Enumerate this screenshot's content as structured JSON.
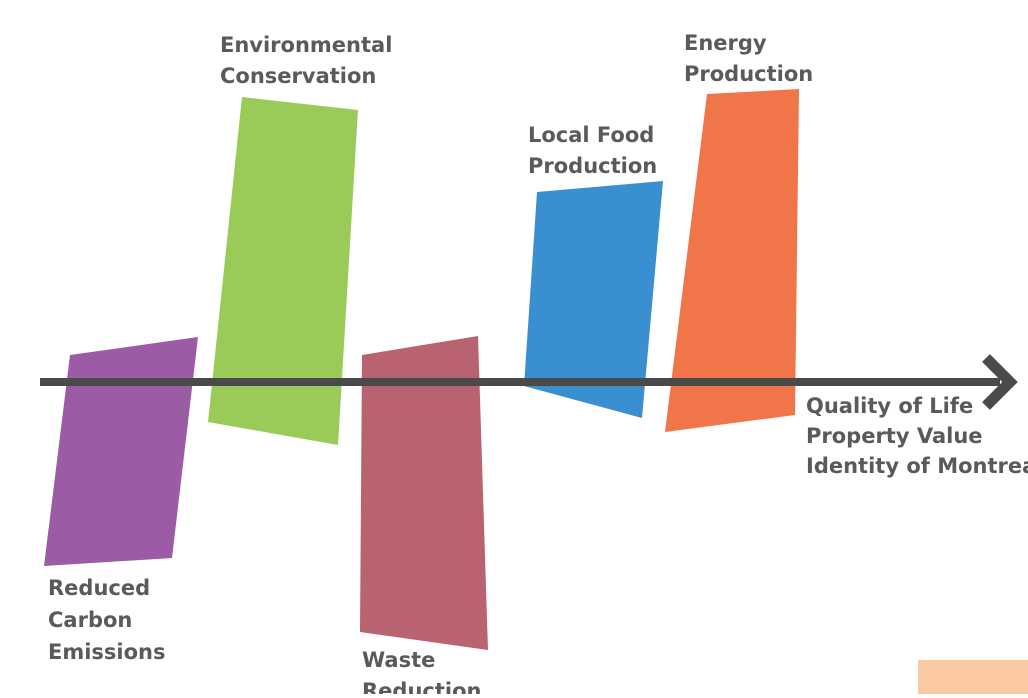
{
  "diagram": {
    "axis": {
      "outcomes": [
        "Quality of Life",
        "Property Value",
        "Identity of Montreal"
      ],
      "color": "#4a4a4a"
    },
    "blocks": [
      {
        "id": "carbon",
        "label_lines": [
          "Reduced",
          "Carbon",
          "Emissions"
        ],
        "color": "#9b5ba5"
      },
      {
        "id": "environment",
        "label_lines": [
          "Environmental",
          "Conservation"
        ],
        "color": "#9acb58"
      },
      {
        "id": "waste",
        "label_lines": [
          "Waste",
          "Reduction"
        ],
        "color": "#b8636f"
      },
      {
        "id": "food",
        "label_lines": [
          "Local Food",
          "Production"
        ],
        "color": "#3a8fd0"
      },
      {
        "id": "energy",
        "label_lines": [
          "Energy",
          "Production"
        ],
        "color": "#f0764a"
      }
    ],
    "text_color": "#5a5a5a"
  }
}
